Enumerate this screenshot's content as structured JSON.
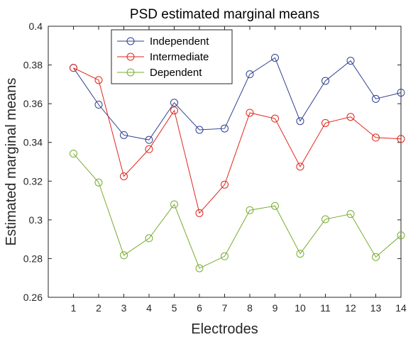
{
  "chart_data": {
    "type": "line",
    "title": "PSD estimated marginal means",
    "xlabel": "Electrodes",
    "ylabel": "Estimated marginal means",
    "x": [
      1,
      2,
      3,
      4,
      5,
      6,
      7,
      8,
      9,
      10,
      11,
      12,
      13,
      14
    ],
    "xlim": [
      0,
      14
    ],
    "ylim": [
      0.26,
      0.4
    ],
    "x_ticks": [
      "1",
      "2",
      "3",
      "4",
      "5",
      "6",
      "7",
      "8",
      "9",
      "10",
      "11",
      "12",
      "13",
      "14"
    ],
    "y_ticks": [
      "0.26",
      "0.28",
      "0.3",
      "0.32",
      "0.34",
      "0.36",
      "0.38",
      "0.4"
    ],
    "grid": false,
    "legend_position": "top-left",
    "series": [
      {
        "name": "Independent",
        "color": "#2f3f8f",
        "values": [
          0.3785,
          0.3595,
          0.3438,
          0.3413,
          0.3605,
          0.3465,
          0.3472,
          0.3752,
          0.3837,
          0.351,
          0.3718,
          0.3822,
          0.3625,
          0.3657
        ]
      },
      {
        "name": "Intermediate",
        "color": "#e0261b",
        "values": [
          0.3785,
          0.3722,
          0.3225,
          0.3365,
          0.3565,
          0.3035,
          0.3182,
          0.3553,
          0.3523,
          0.3275,
          0.35,
          0.3532,
          0.3425,
          0.3418
        ]
      },
      {
        "name": "Dependent",
        "color": "#77ac30",
        "values": [
          0.3342,
          0.3193,
          0.2817,
          0.2905,
          0.308,
          0.275,
          0.2812,
          0.305,
          0.3072,
          0.2825,
          0.3003,
          0.303,
          0.2808,
          0.292
        ]
      }
    ]
  }
}
